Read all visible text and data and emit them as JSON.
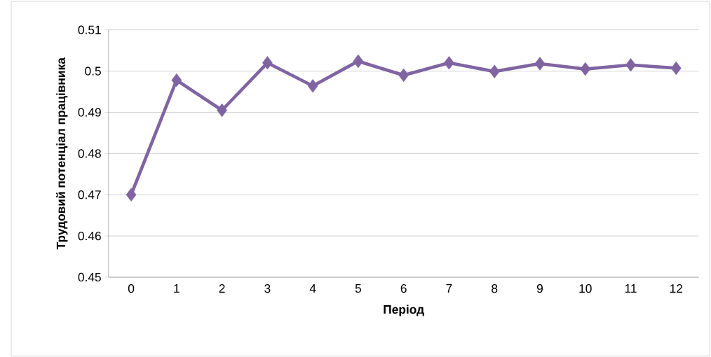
{
  "chart_data": {
    "type": "line",
    "xlabel": "Період",
    "ylabel": "Трудовий потенціал працівника",
    "categories": [
      "0",
      "1",
      "2",
      "3",
      "4",
      "5",
      "6",
      "7",
      "8",
      "9",
      "10",
      "11",
      "12"
    ],
    "series": [
      {
        "color": "#8064a2",
        "values": [
          0.47,
          0.4978,
          0.4905,
          0.502,
          0.4964,
          0.5024,
          0.499,
          0.502,
          0.4999,
          0.5018,
          0.5005,
          0.5015,
          0.5007
        ]
      }
    ],
    "ylim": [
      0.45,
      0.51
    ],
    "yticks": [
      0.45,
      0.46,
      0.47,
      0.48,
      0.49,
      0.5,
      0.51
    ],
    "grid": "y",
    "marker": "diamond",
    "line_style": "solid"
  }
}
